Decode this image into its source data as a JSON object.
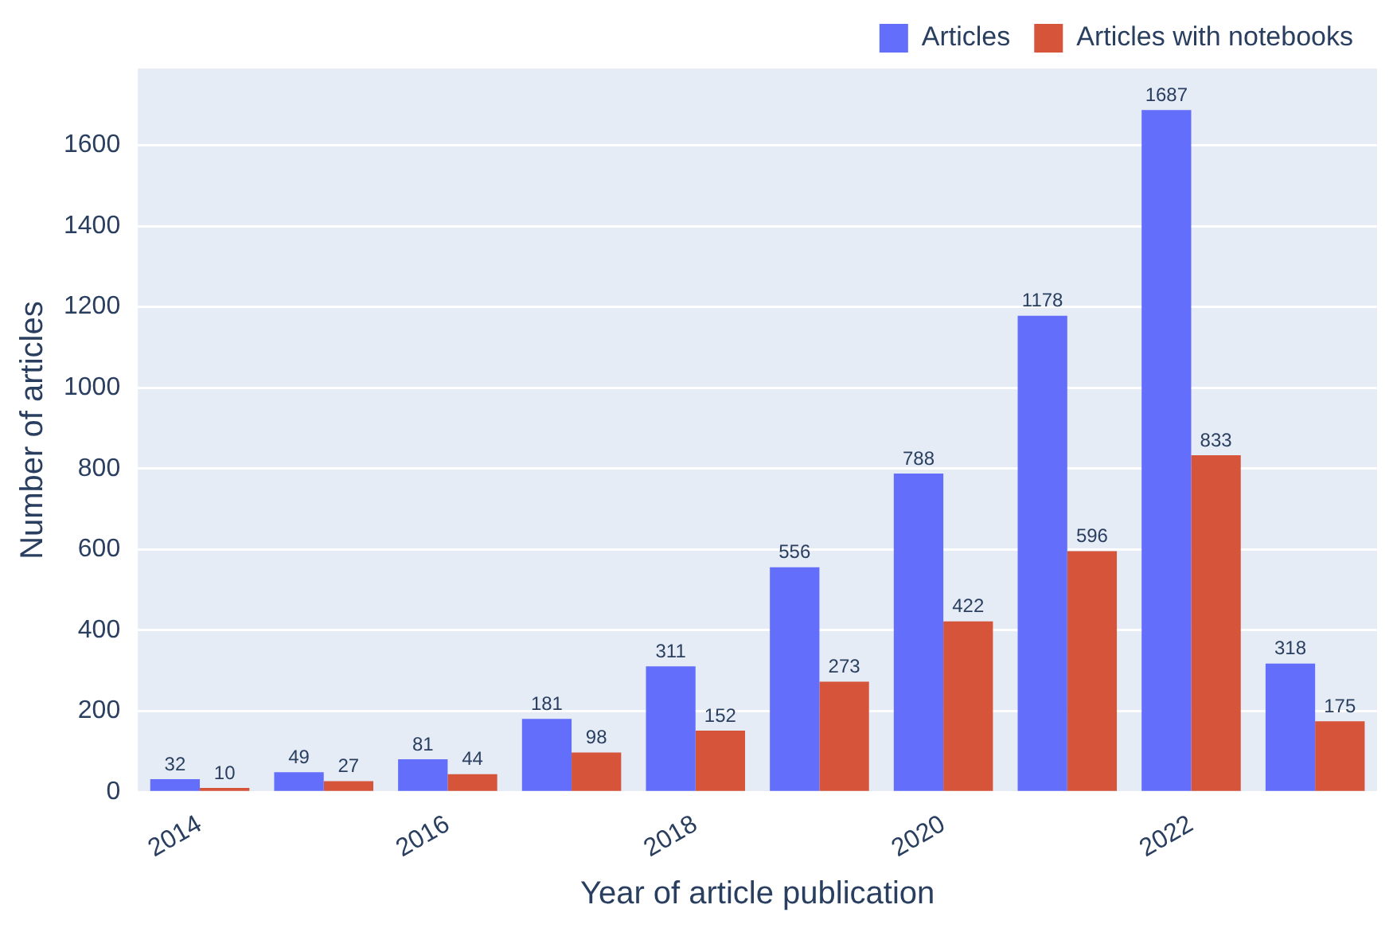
{
  "chart_data": {
    "type": "bar",
    "xlabel": "Year of article publication",
    "ylabel": "Number of articles",
    "categories": [
      "2014",
      null,
      "2016",
      null,
      "2018",
      null,
      "2020",
      null,
      "2022",
      null
    ],
    "series": [
      {
        "name": "Articles",
        "color": "#636efa",
        "values": [
          32,
          49,
          81,
          181,
          311,
          556,
          788,
          1178,
          1687,
          318
        ]
      },
      {
        "name": "Articles with notebooks",
        "color": "#d6543a",
        "values": [
          10,
          27,
          44,
          98,
          152,
          273,
          422,
          596,
          833,
          175
        ]
      }
    ],
    "ylim": [
      0,
      1790
    ],
    "yticks": [
      0,
      200,
      400,
      600,
      800,
      1000,
      1200,
      1400,
      1600
    ],
    "grid": "y",
    "legend": "top right",
    "data_labels": true
  }
}
